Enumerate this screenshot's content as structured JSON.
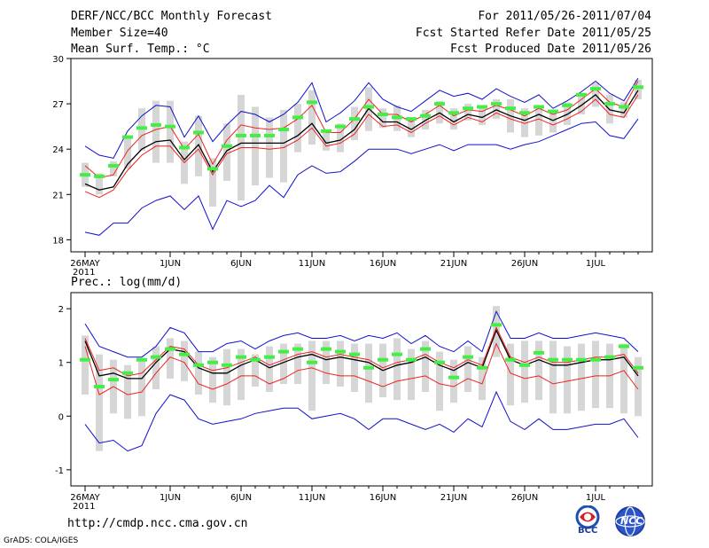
{
  "header": {
    "title": "DERF/NCC/BCC Monthly Forecast",
    "member_size": "Member Size=40",
    "variable": "Mean Surf. Temp.: °C",
    "period": "For 2011/05/26-2011/07/04",
    "started": "Fcst Started Refer Date 2011/05/25",
    "produced": "Fcst Produced Date 2011/05/26"
  },
  "footer": {
    "url": "http://cmdp.ncc.cma.gov.cn",
    "grads": "GrADS: COLA/IGES",
    "logo_bcc": "BCC",
    "logo_ncc": "NCC"
  },
  "colors": {
    "box": "#d6d6d6",
    "green": "#44ee44",
    "red": "#ee2222",
    "blue": "#1010cc",
    "black": "#000000"
  },
  "chart_data": [
    {
      "type": "line",
      "title": "Mean Surf. Temp.: °C",
      "ylim": [
        17.2,
        30
      ],
      "yticks": [
        18,
        21,
        24,
        27,
        30
      ],
      "xtick_labels": [
        "26MAY",
        "1JUN",
        "6JUN",
        "11JUN",
        "16JUN",
        "21JUN",
        "26JUN",
        "1JUL"
      ],
      "xtick_days": [
        1,
        7,
        12,
        17,
        22,
        27,
        32,
        37
      ],
      "year_label": "2011",
      "days": 40,
      "series": [
        {
          "name": "ensemble mean",
          "color": "black",
          "values": [
            21.7,
            21.3,
            21.5,
            23,
            24,
            24.5,
            24.6,
            23.3,
            24.3,
            22.5,
            23.9,
            24.4,
            24.4,
            24.4,
            24.4,
            24.9,
            25.7,
            24.4,
            24.6,
            25.3,
            26.7,
            25.8,
            25.8,
            25.3,
            25.9,
            26.4,
            25.8,
            26.3,
            26.1,
            26.6,
            26.2,
            25.9,
            26.3,
            25.9,
            26.3,
            26.9,
            27.6,
            26.6,
            26.4,
            27.9
          ]
        },
        {
          "name": "upper band",
          "color": "red",
          "values": [
            22.9,
            22.1,
            22.3,
            23.9,
            24.9,
            25.3,
            25.5,
            24,
            25,
            23,
            24.6,
            25.6,
            25.4,
            25.3,
            25.4,
            26,
            26.9,
            25.1,
            25.1,
            26,
            27.3,
            26.3,
            26.3,
            25.8,
            26.3,
            26.9,
            26.2,
            26.6,
            26.5,
            26.9,
            26.6,
            26.2,
            26.7,
            26.3,
            26.6,
            27.3,
            28,
            27.1,
            26.8,
            28.5
          ]
        },
        {
          "name": "lower band",
          "color": "red",
          "values": [
            21.2,
            20.8,
            21.3,
            22.6,
            23.6,
            24.2,
            24.2,
            23.1,
            24,
            22.3,
            23.7,
            24.1,
            24.1,
            24,
            24.1,
            24.6,
            25.4,
            24.2,
            24.4,
            25,
            26.3,
            25.5,
            25.6,
            25.1,
            25.7,
            26.2,
            25.6,
            26.1,
            25.8,
            26.4,
            26,
            25.7,
            26,
            25.6,
            26,
            26.5,
            27.3,
            26.3,
            26.1,
            27.6
          ]
        },
        {
          "name": "maximum",
          "color": "blue",
          "values": [
            24.2,
            23.6,
            23.4,
            25.2,
            26.2,
            26.9,
            26.8,
            24.8,
            26.2,
            24.5,
            25.6,
            26.5,
            26.3,
            25.8,
            26.3,
            27.1,
            28.4,
            25.8,
            26.4,
            27.2,
            28.4,
            27.3,
            26.8,
            26.5,
            27.2,
            27.9,
            27.5,
            27.7,
            27.3,
            28,
            27.5,
            27.1,
            27.6,
            26.7,
            27.2,
            27.8,
            28.5,
            27.7,
            27.2,
            28.7
          ]
        },
        {
          "name": "minimum",
          "color": "blue",
          "values": [
            18.5,
            18.3,
            19.1,
            19.1,
            20.1,
            20.6,
            20.9,
            20,
            20.9,
            18.7,
            20.6,
            20.2,
            20.6,
            21.6,
            20.8,
            22.3,
            22.9,
            22.4,
            22.5,
            23.2,
            24,
            24,
            24,
            23.7,
            24,
            24.3,
            23.9,
            24.3,
            24.3,
            24.3,
            24,
            24.3,
            24.5,
            24.9,
            25.3,
            25.7,
            25.8,
            24.9,
            24.7,
            26
          ]
        }
      ],
      "boxes": {
        "high": [
          23.1,
          22.4,
          23.2,
          24.9,
          26.7,
          27.2,
          27.2,
          24.5,
          26.2,
          23.4,
          25.7,
          27.6,
          26.8,
          26.1,
          26.6,
          27,
          27.9,
          25.3,
          25.7,
          26.8,
          28.1,
          26.7,
          26.9,
          25.9,
          26.6,
          27.2,
          26.7,
          27,
          26.9,
          27.3,
          27.3,
          26.7,
          26.9,
          26.6,
          27.1,
          27.6,
          28.4,
          27.6,
          27.1,
          28.6
        ],
        "low": [
          21.5,
          21,
          22.2,
          22.7,
          23.9,
          23.1,
          23.1,
          21.7,
          22.2,
          20.2,
          21.9,
          20.6,
          21.6,
          22.1,
          21.8,
          23.8,
          24.3,
          23.9,
          23.8,
          24.6,
          25.2,
          25.4,
          25.2,
          24.8,
          25.3,
          25.7,
          25.3,
          25.9,
          25.6,
          26,
          25.1,
          24.8,
          24.9,
          25.1,
          25.6,
          26.3,
          26.8,
          25.7,
          26.1,
          27.3
        ]
      },
      "green_marks": [
        22.3,
        22.2,
        22.9,
        24.8,
        25.4,
        25.6,
        25.5,
        24.1,
        25.1,
        22.7,
        24.2,
        24.9,
        24.9,
        24.9,
        25.3,
        26.1,
        27.1,
        25.2,
        25.5,
        26,
        26.8,
        26.3,
        26.1,
        26,
        26.2,
        27,
        26.4,
        26.7,
        26.8,
        27,
        26.7,
        26.4,
        26.8,
        26.5,
        26.9,
        27.6,
        28,
        27,
        26.8,
        28.1
      ]
    },
    {
      "type": "line",
      "title": "Prec.: log(mm/d)",
      "ylim": [
        -1.3,
        2.3
      ],
      "yticks": [
        -1,
        0,
        1,
        2
      ],
      "xtick_labels": [
        "26MAY",
        "1JUN",
        "6JUN",
        "11JUN",
        "16JUN",
        "21JUN",
        "26JUN",
        "1JUL"
      ],
      "xtick_days": [
        1,
        7,
        12,
        17,
        22,
        27,
        32,
        37
      ],
      "year_label": "2011",
      "days": 40,
      "series": [
        {
          "name": "ensemble mean",
          "color": "black",
          "values": [
            1.4,
            0.75,
            0.8,
            0.7,
            0.7,
            1,
            1.25,
            1.2,
            0.9,
            0.8,
            0.8,
            0.95,
            1.05,
            0.9,
            1,
            1.1,
            1.15,
            1.05,
            1.1,
            1.05,
            1,
            0.85,
            0.95,
            1,
            1.1,
            0.95,
            0.85,
            1,
            0.9,
            1.6,
            1.05,
            0.95,
            1.05,
            0.95,
            0.95,
            1,
            1.05,
            1.05,
            1.1,
            0.75
          ]
        },
        {
          "name": "upper band",
          "color": "red",
          "values": [
            1.45,
            0.85,
            0.9,
            0.75,
            0.8,
            1.05,
            1.3,
            1.25,
            0.95,
            0.85,
            0.9,
            1,
            1.1,
            0.95,
            1.05,
            1.15,
            1.2,
            1.1,
            1.15,
            1.1,
            1.05,
            0.9,
            1,
            1.05,
            1.15,
            1,
            0.9,
            1.05,
            0.95,
            1.65,
            1.1,
            1,
            1.1,
            1,
            1,
            1.05,
            1.1,
            1.1,
            1.15,
            0.8
          ]
        },
        {
          "name": "lower band",
          "color": "red",
          "values": [
            1.3,
            0.4,
            0.55,
            0.4,
            0.45,
            0.8,
            1.1,
            1,
            0.6,
            0.5,
            0.6,
            0.75,
            0.75,
            0.6,
            0.7,
            0.85,
            0.9,
            0.8,
            0.75,
            0.75,
            0.65,
            0.55,
            0.65,
            0.7,
            0.75,
            0.6,
            0.55,
            0.7,
            0.6,
            1.35,
            0.8,
            0.7,
            0.75,
            0.6,
            0.65,
            0.7,
            0.75,
            0.75,
            0.85,
            0.5
          ]
        },
        {
          "name": "maximum",
          "color": "blue",
          "values": [
            1.72,
            1.3,
            1.2,
            1.1,
            1.1,
            1.3,
            1.65,
            1.55,
            1.2,
            1.2,
            1.35,
            1.4,
            1.25,
            1.4,
            1.5,
            1.55,
            1.45,
            1.45,
            1.5,
            1.4,
            1.5,
            1.45,
            1.55,
            1.35,
            1.5,
            1.3,
            1.2,
            1.4,
            1.2,
            1.95,
            1.45,
            1.45,
            1.55,
            1.45,
            1.45,
            1.5,
            1.55,
            1.5,
            1.45,
            1.2
          ]
        },
        {
          "name": "minimum",
          "color": "blue",
          "values": [
            -0.15,
            -0.5,
            -0.45,
            -0.65,
            -0.55,
            0.05,
            0.4,
            0.3,
            -0.05,
            -0.15,
            -0.1,
            -0.05,
            0.05,
            0.1,
            0.15,
            0.15,
            -0.05,
            0,
            0.05,
            -0.05,
            -0.25,
            -0.05,
            -0.05,
            -0.15,
            -0.25,
            -0.15,
            -0.3,
            -0.05,
            -0.2,
            0.45,
            -0.1,
            -0.25,
            -0.05,
            -0.25,
            -0.25,
            -0.2,
            -0.15,
            -0.15,
            -0.05,
            -0.4
          ]
        },
        {
          "name": "green_marks",
          "color": "green",
          "values": [
            1.05,
            0.55,
            0.68,
            0.8,
            1.05,
            1.1,
            1.25,
            1.15,
            0.95,
            1.0,
            0.95,
            1.1,
            1.05,
            1.1,
            1.2,
            1.25,
            1.0,
            1.25,
            1.2,
            1.15,
            0.9,
            1.05,
            1.15,
            1.05,
            1.25,
            1.0,
            0.72,
            1.1,
            0.9,
            1.7,
            1.05,
            0.95,
            1.18,
            1.05,
            1.05,
            1.05,
            1.05,
            1.1,
            1.3,
            0.9
          ]
        }
      ],
      "boxes": {
        "high": [
          1.5,
          1.15,
          1.05,
          0.95,
          1.05,
          1.3,
          1.45,
          1.4,
          1.2,
          1.1,
          1.25,
          1.25,
          1.15,
          1.3,
          1.35,
          1.35,
          1.4,
          1.4,
          1.4,
          1.35,
          1.35,
          1.35,
          1.45,
          1.25,
          1.4,
          1.2,
          1.05,
          1.3,
          1.1,
          2.05,
          1.35,
          1.4,
          1.4,
          1.4,
          1.3,
          1.35,
          1.4,
          1.35,
          1.35,
          1.1
        ],
        "low": [
          0.4,
          -0.65,
          0.05,
          -0.05,
          0.0,
          0.5,
          0.7,
          0.65,
          0.4,
          0.25,
          0.2,
          0.3,
          0.55,
          0.45,
          0.6,
          0.6,
          0.1,
          0.6,
          0.55,
          0.45,
          0.25,
          0.35,
          0.3,
          0.3,
          0.45,
          0.1,
          0.25,
          0.45,
          0.3,
          1.1,
          0.2,
          0.25,
          0.3,
          0.05,
          0.05,
          0.1,
          0.15,
          0.15,
          0.05,
          0.0
        ]
      }
    }
  ]
}
